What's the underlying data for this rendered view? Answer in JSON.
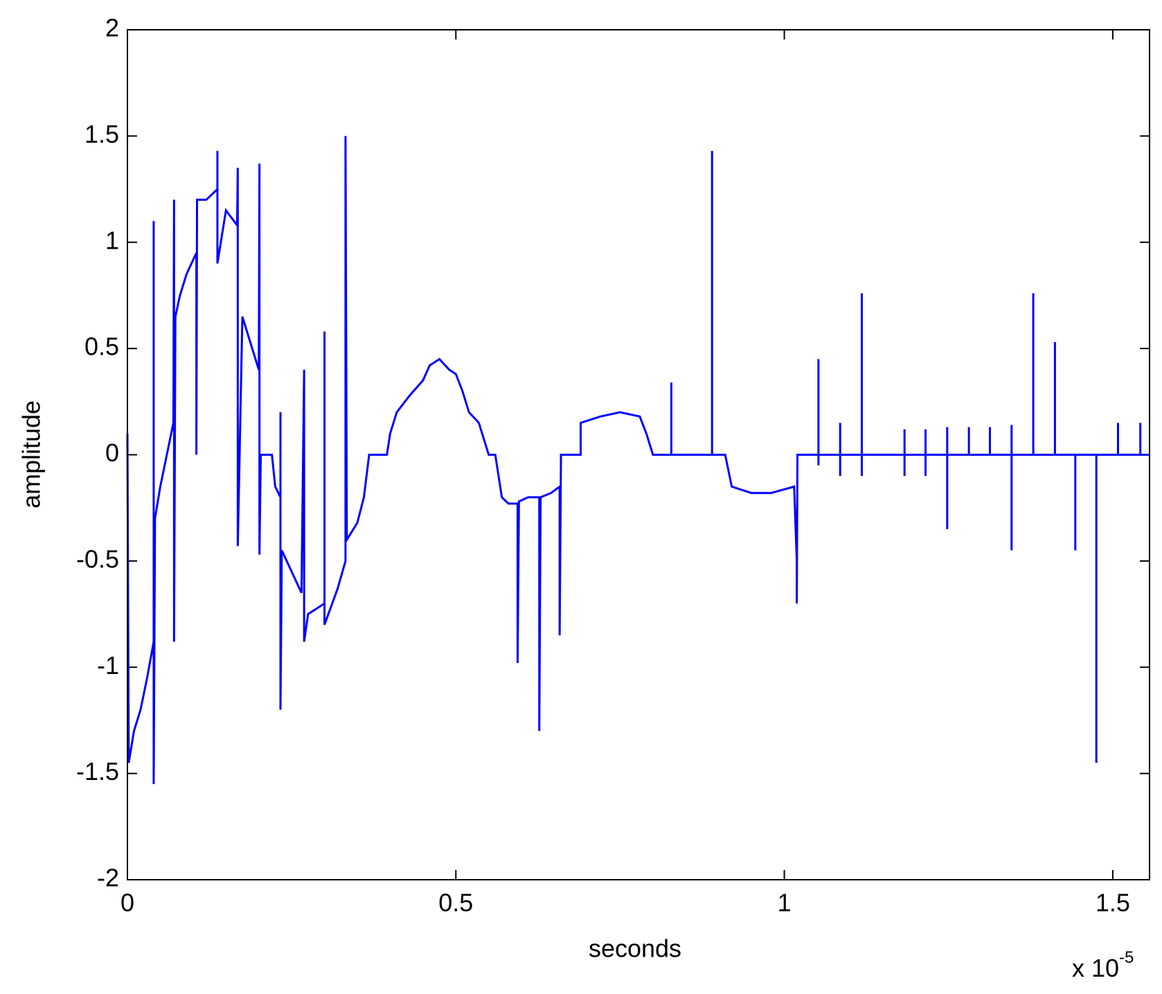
{
  "chart_data": {
    "type": "line",
    "xlabel": "seconds",
    "ylabel": "amplitude",
    "x_multiplier": {
      "base": "x 10",
      "exponent": "-5"
    },
    "xlim": [
      0,
      1.556
    ],
    "xticks": [
      0,
      0.5,
      1,
      1.5
    ],
    "ylim": [
      -2,
      2
    ],
    "yticks": [
      -2,
      -1.5,
      -1,
      -0.5,
      0,
      0.5,
      1,
      1.5,
      2
    ],
    "grid": false,
    "x": [
      0,
      0.002,
      0.01,
      0.02,
      0.03,
      0.04,
      0.04,
      0.04,
      0.042,
      0.05,
      0.06,
      0.07,
      0.071,
      0.071,
      0.073,
      0.08,
      0.09,
      0.105,
      0.105,
      0.106,
      0.12,
      0.137,
      0.137,
      0.137,
      0.15,
      0.167,
      0.168,
      0.168,
      0.175,
      0.19,
      0.2,
      0.201,
      0.201,
      0.203,
      0.22,
      0.225,
      0.233,
      0.233,
      0.233,
      0.235,
      0.25,
      0.265,
      0.269,
      0.269,
      0.275,
      0.29,
      0.3,
      0.3,
      0.3,
      0.32,
      0.332,
      0.332,
      0.334,
      0.35,
      0.36,
      0.368,
      0.395,
      0.4,
      0.41,
      0.43,
      0.45,
      0.46,
      0.475,
      0.49,
      0.5,
      0.51,
      0.52,
      0.535,
      0.55,
      0.56,
      0.565,
      0.57,
      0.58,
      0.594,
      0.594,
      0.596,
      0.61,
      0.627,
      0.627,
      0.629,
      0.645,
      0.658,
      0.658,
      0.66,
      0.69,
      0.69,
      0.72,
      0.75,
      0.78,
      0.79,
      0.8,
      0.828,
      0.828,
      0.828,
      0.89,
      0.89,
      0.89,
      0.91,
      0.92,
      0.95,
      0.98,
      1.015,
      1.019,
      1.019,
      1.02,
      1.052,
      1.052,
      1.052,
      1.052,
      1.085,
      1.085,
      1.085,
      1.085,
      1.118,
      1.118,
      1.118,
      1.118,
      1.183,
      1.183,
      1.183,
      1.183,
      1.215,
      1.215,
      1.215,
      1.215,
      1.248,
      1.248,
      1.248,
      1.248,
      1.281,
      1.281,
      1.281,
      1.313,
      1.313,
      1.313,
      1.346,
      1.346,
      1.346,
      1.346,
      1.379,
      1.379,
      1.379,
      1.412,
      1.412,
      1.412,
      1.443,
      1.443,
      1.443,
      1.475,
      1.475,
      1.475,
      1.508,
      1.508,
      1.508,
      1.542,
      1.542,
      1.542,
      1.556
    ],
    "series": [
      {
        "color": "#0000ff",
        "values": [
          0.1,
          -1.45,
          -1.3,
          -1.2,
          -1.05,
          -0.88,
          1.1,
          -1.55,
          -0.3,
          -0.15,
          0,
          0.15,
          1.2,
          -0.88,
          0.65,
          0.75,
          0.85,
          0.95,
          0,
          1.2,
          1.2,
          1.25,
          1.43,
          0.9,
          1.15,
          1.08,
          1.35,
          -0.43,
          0.65,
          0.5,
          0.4,
          1.37,
          -0.47,
          0,
          0,
          -0.15,
          -0.2,
          0.2,
          -1.2,
          -0.45,
          -0.55,
          -0.65,
          0.4,
          -0.88,
          -0.75,
          -0.72,
          -0.7,
          0.58,
          -0.8,
          -0.63,
          -0.5,
          1.5,
          -0.4,
          -0.32,
          -0.2,
          0,
          0,
          0.1,
          0.2,
          0.28,
          0.35,
          0.42,
          0.45,
          0.4,
          0.38,
          0.3,
          0.2,
          0.15,
          0,
          0,
          -0.1,
          -0.2,
          -0.23,
          -0.23,
          -0.98,
          -0.22,
          -0.2,
          -0.2,
          -1.3,
          -0.2,
          -0.18,
          -0.15,
          -0.85,
          0,
          0,
          0.15,
          0.18,
          0.2,
          0.18,
          0.1,
          0,
          0,
          0.34,
          0,
          0,
          1.43,
          0,
          0,
          -0.15,
          -0.18,
          -0.18,
          -0.15,
          -0.5,
          -0.7,
          0,
          0,
          0.45,
          -0.05,
          0,
          0,
          0.15,
          -0.1,
          0,
          0,
          0.76,
          -0.1,
          0,
          0,
          0.12,
          -0.1,
          0,
          0,
          0.12,
          -0.1,
          0,
          0,
          0.13,
          -0.35,
          0,
          0,
          0.13,
          0,
          0,
          0.13,
          0,
          0,
          0.14,
          -0.45,
          0,
          0,
          0.76,
          0,
          0,
          0.53,
          0,
          0,
          -0.45,
          0,
          0,
          -1.45,
          0,
          0,
          0.15,
          0,
          0,
          0.15,
          0,
          0
        ]
      }
    ]
  }
}
